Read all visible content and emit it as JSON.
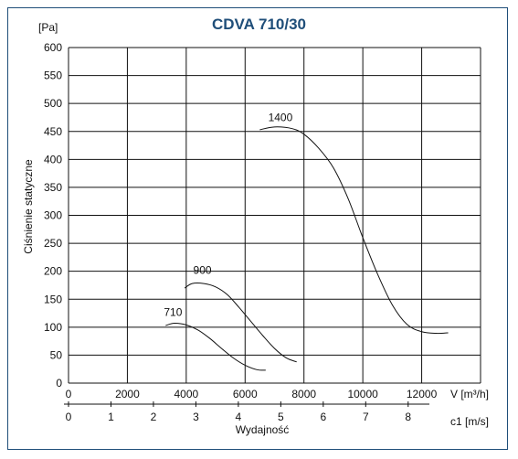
{
  "chart_data": {
    "type": "line",
    "title": "CDVA 710/30",
    "ylabel": "Ciśnienie statyczne",
    "yunit": "[Pa]",
    "xlabel": "Wydajność",
    "x_unit_primary": "V [m³/h]",
    "x_unit_secondary": "c1 [m/s]",
    "xlim": [
      0,
      14000
    ],
    "ylim": [
      0,
      600
    ],
    "yticks": [
      "0",
      "50",
      "100",
      "150",
      "200",
      "250",
      "300",
      "350",
      "400",
      "450",
      "500",
      "550",
      "600"
    ],
    "xticks": [
      "0",
      "2000",
      "4000",
      "6000",
      "8000",
      "10000",
      "12000"
    ],
    "secondary_ticks": [
      "0",
      "1",
      "2",
      "3",
      "4",
      "5",
      "6",
      "7",
      "8"
    ],
    "secondary_xlim": [
      0,
      8.5
    ],
    "grid": true,
    "series": [
      {
        "name": "1400",
        "x": [
          6500,
          7000,
          7600,
          8000,
          8500,
          9000,
          9500,
          10000,
          10500,
          11000,
          11500,
          12000,
          12500,
          12900
        ],
        "y": [
          453,
          458,
          455,
          445,
          420,
          385,
          330,
          260,
          195,
          140,
          105,
          92,
          89,
          90
        ]
      },
      {
        "name": "900",
        "x": [
          3950,
          4200,
          4600,
          5000,
          5400,
          5800,
          6200,
          6600,
          7000,
          7400,
          7750
        ],
        "y": [
          170,
          178,
          178,
          172,
          158,
          135,
          110,
          85,
          62,
          45,
          38
        ]
      },
      {
        "name": "710",
        "x": [
          3300,
          3600,
          4000,
          4400,
          4800,
          5200,
          5600,
          6000,
          6400,
          6700
        ],
        "y": [
          103,
          107,
          104,
          95,
          80,
          62,
          45,
          32,
          24,
          23
        ]
      }
    ],
    "annotations": [
      {
        "text": "1400",
        "x": 7200,
        "y": 468
      },
      {
        "text": "900",
        "x": 4550,
        "y": 195
      },
      {
        "text": "710",
        "x": 3550,
        "y": 120
      }
    ]
  }
}
